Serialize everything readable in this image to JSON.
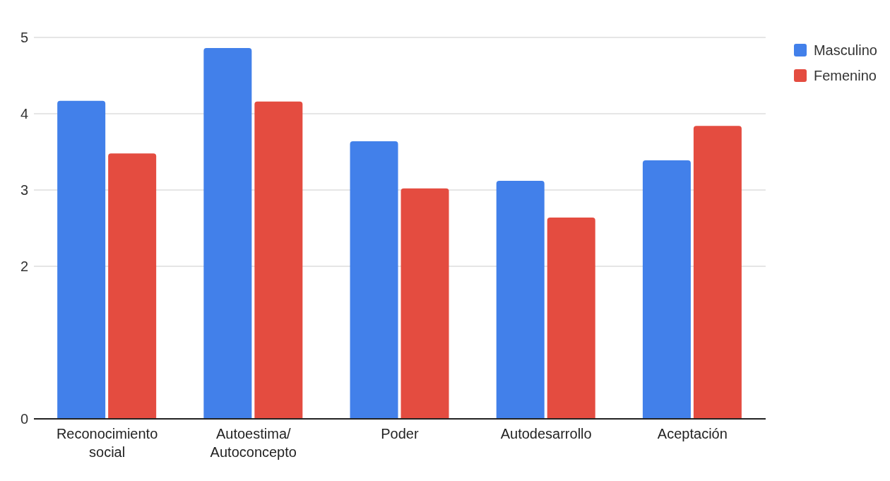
{
  "chart_data": {
    "type": "bar",
    "categories": [
      "Reconocimiento social",
      "Autoestima/ Autoconcepto",
      "Poder",
      "Autodesarrollo",
      "Aceptación"
    ],
    "series": [
      {
        "name": "Masculino",
        "color": "#4280ea",
        "values": [
          4.17,
          4.86,
          3.64,
          3.12,
          3.39
        ]
      },
      {
        "name": "Femenino",
        "color": "#e44c40",
        "values": [
          3.48,
          4.16,
          3.02,
          2.64,
          3.84
        ]
      }
    ],
    "ylim": [
      0,
      5
    ],
    "yticks": [
      0,
      2,
      3,
      4,
      5
    ],
    "grid": "y",
    "legend": "top right"
  }
}
